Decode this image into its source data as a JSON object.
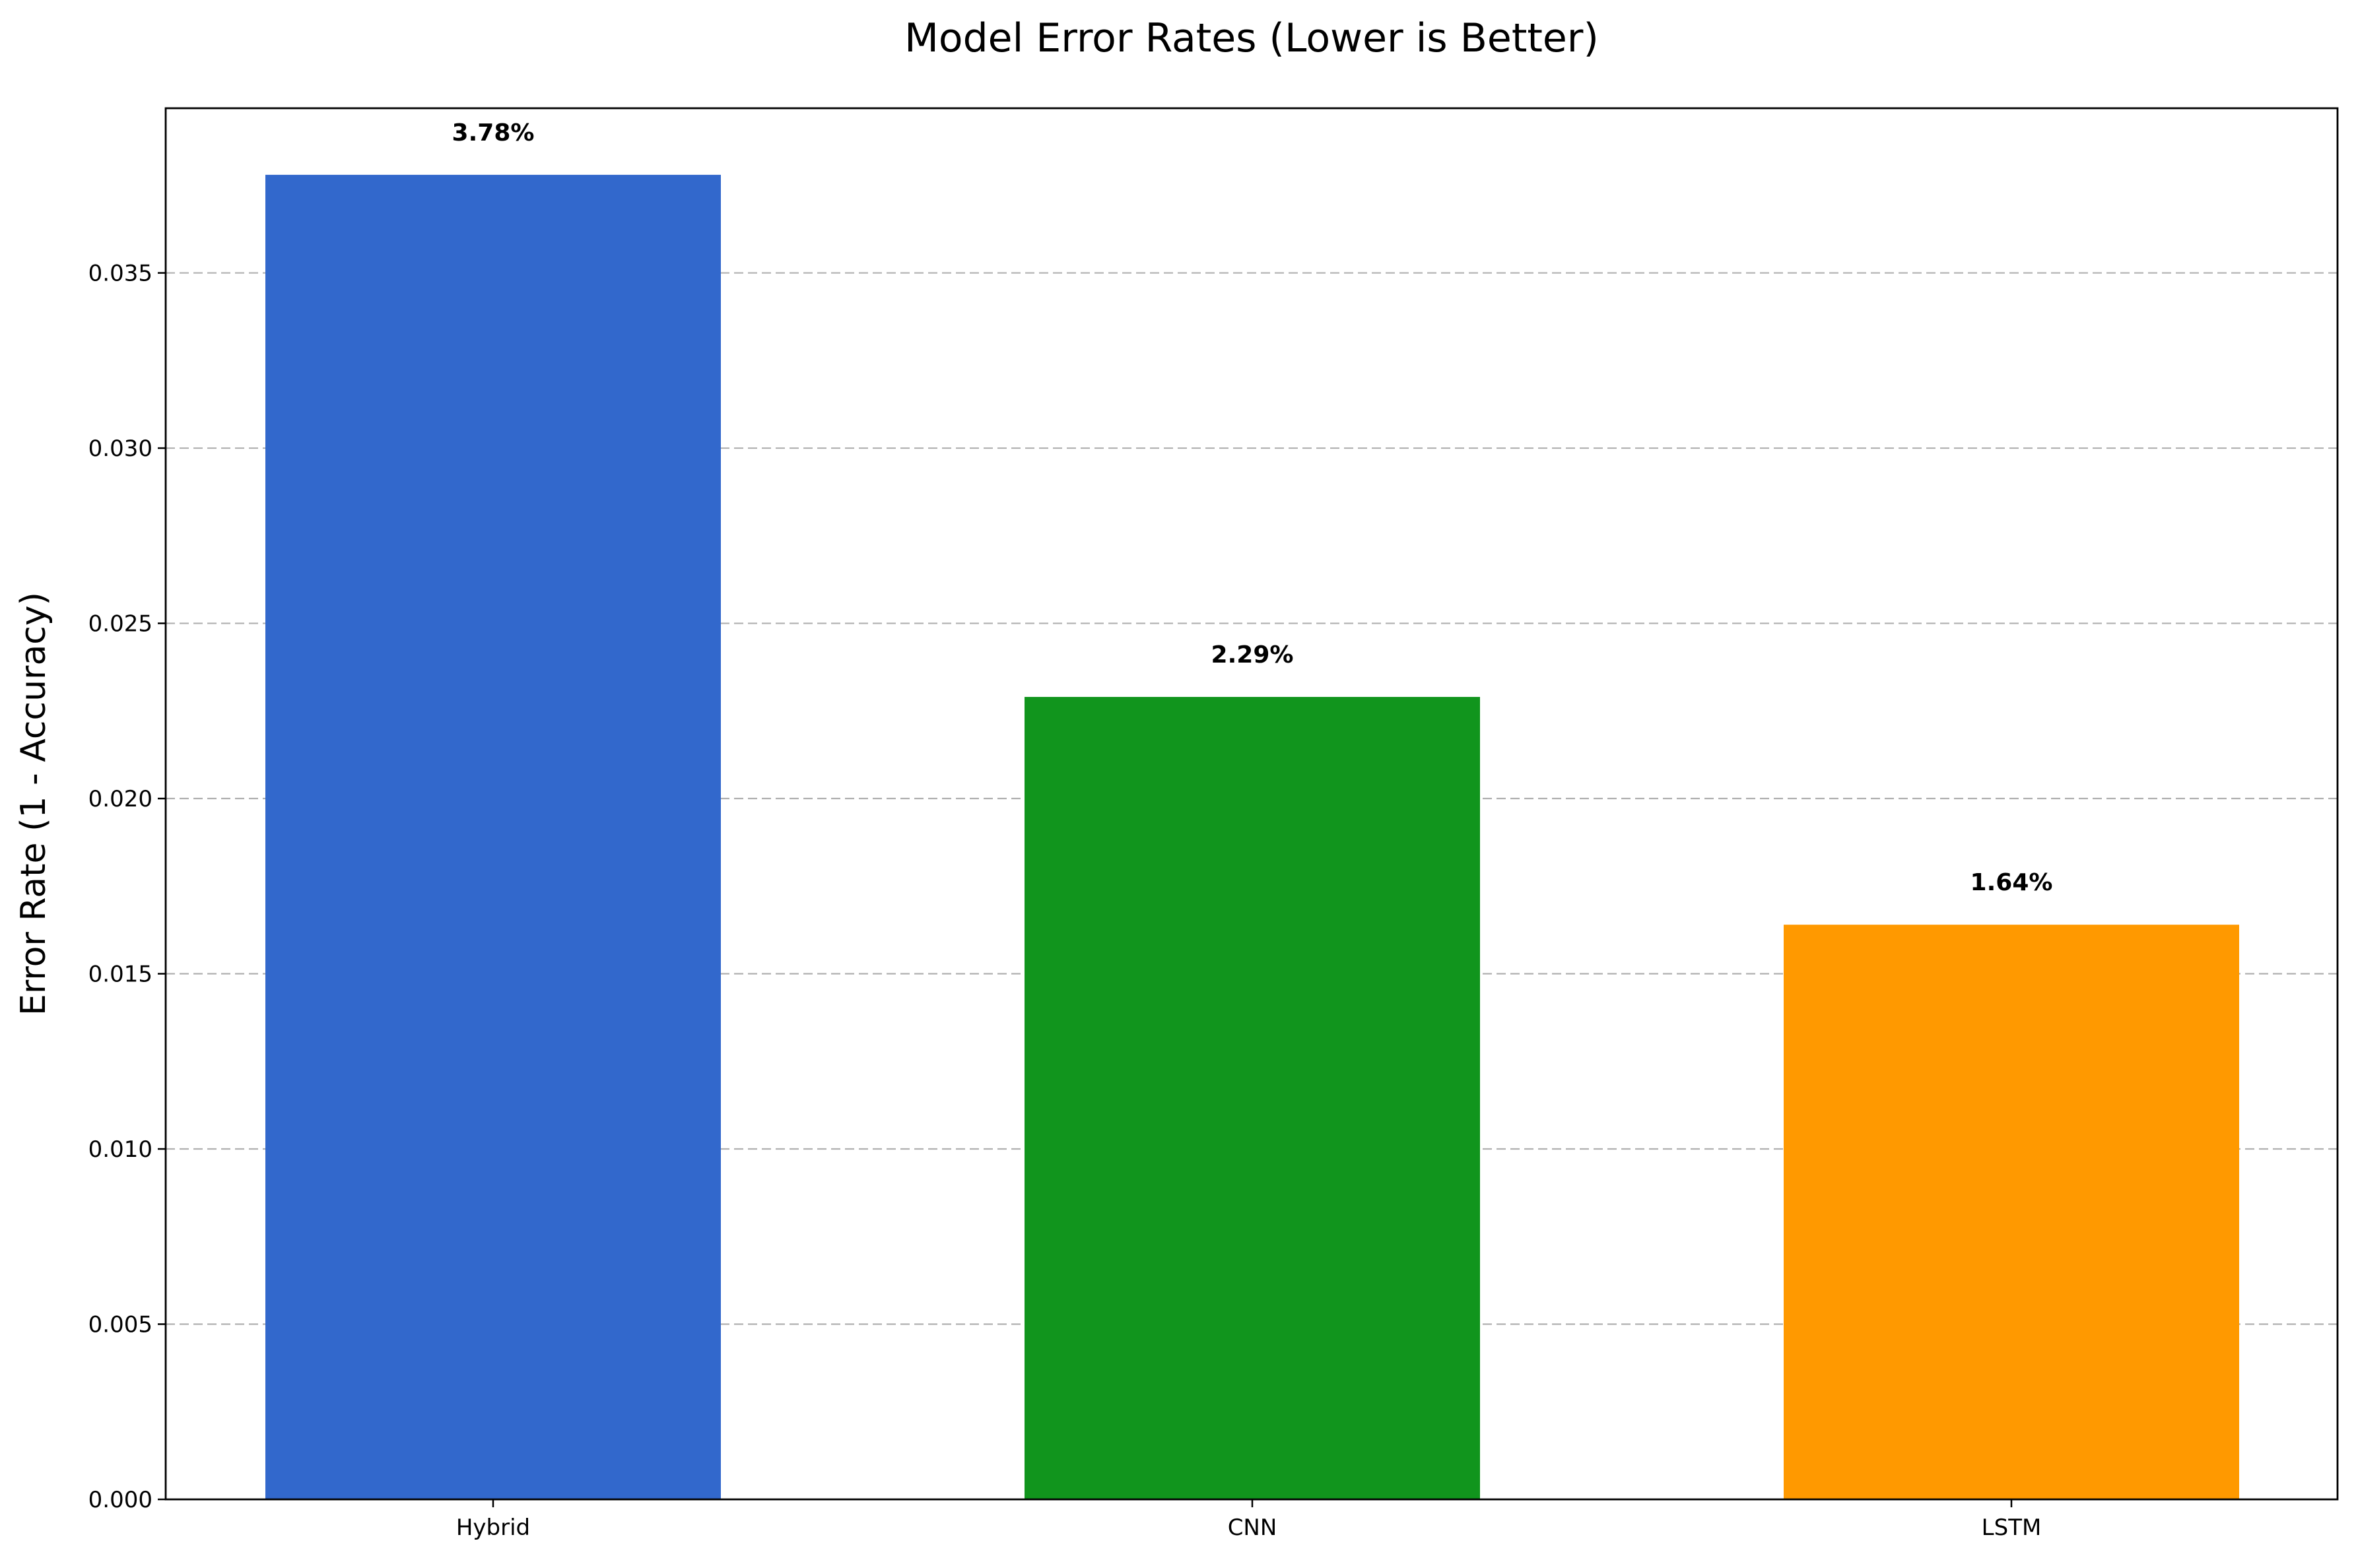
{
  "chart_data": {
    "type": "bar",
    "title": "Model Error Rates (Lower is Better)",
    "xlabel": "",
    "ylabel": "Error Rate (1 - Accuracy)",
    "categories": [
      "Hybrid",
      "CNN",
      "LSTM"
    ],
    "values": [
      0.0378,
      0.0229,
      0.0164
    ],
    "data_labels": [
      "3.78%",
      "2.29%",
      "1.64%"
    ],
    "colors": [
      "#3268CC",
      "#11951D",
      "#FF9900"
    ],
    "ylim": [
      0,
      0.0397
    ],
    "yticks": [
      0.0,
      0.005,
      0.01,
      0.015,
      0.02,
      0.025,
      0.03,
      0.035
    ],
    "ytick_labels": [
      "0.000",
      "0.005",
      "0.010",
      "0.015",
      "0.020",
      "0.025",
      "0.030",
      "0.035"
    ],
    "grid": "y-dashed",
    "legend": "none"
  }
}
